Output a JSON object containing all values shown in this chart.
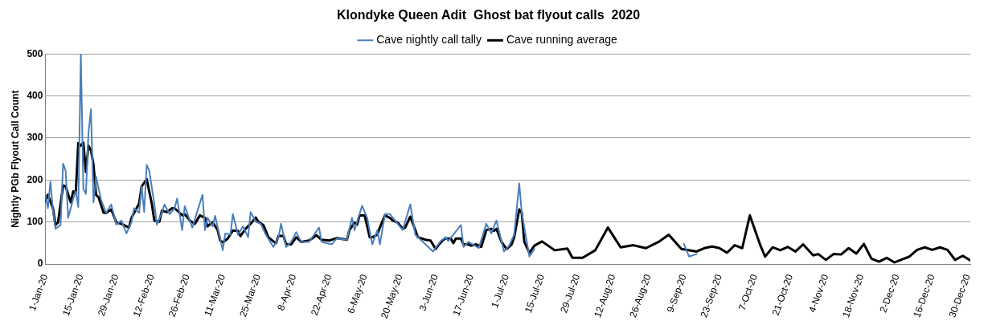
{
  "chart_data": {
    "type": "line",
    "title": "Klondyke Queen Adit  Ghost bat flyout calls  2020",
    "ylabel": "Nightly PGb Flyout Call Count",
    "xlim": [
      "2020-01-01",
      "2020-12-31"
    ],
    "xticks": [
      {
        "value": "2020-01-01",
        "label": "1-Jan-20"
      },
      {
        "value": "2020-01-15",
        "label": "15-Jan-20"
      },
      {
        "value": "2020-01-29",
        "label": "29-Jan-20"
      },
      {
        "value": "2020-02-12",
        "label": "12-Feb-20"
      },
      {
        "value": "2020-02-26",
        "label": "26-Feb-20"
      },
      {
        "value": "2020-03-11",
        "label": "11-Mar-20"
      },
      {
        "value": "2020-03-25",
        "label": "25-Mar-20"
      },
      {
        "value": "2020-04-08",
        "label": "8-Apr-20"
      },
      {
        "value": "2020-04-22",
        "label": "22-Apr-20"
      },
      {
        "value": "2020-05-06",
        "label": "6-May-20"
      },
      {
        "value": "2020-05-20",
        "label": "20-May-20"
      },
      {
        "value": "2020-06-03",
        "label": "3-Jun-20"
      },
      {
        "value": "2020-06-17",
        "label": "17-Jun-20"
      },
      {
        "value": "2020-07-01",
        "label": "1-Jul-20"
      },
      {
        "value": "2020-07-15",
        "label": "15-Jul-20"
      },
      {
        "value": "2020-07-29",
        "label": "29-Jul-20"
      },
      {
        "value": "2020-08-12",
        "label": "12-Aug-20"
      },
      {
        "value": "2020-08-26",
        "label": "26-Aug-20"
      },
      {
        "value": "2020-09-09",
        "label": "9-Sep-20"
      },
      {
        "value": "2020-09-23",
        "label": "23-Sep-20"
      },
      {
        "value": "2020-10-07",
        "label": "7-Oct-20"
      },
      {
        "value": "2020-10-21",
        "label": "21-Oct-20"
      },
      {
        "value": "2020-11-04",
        "label": "4-Nov-20"
      },
      {
        "value": "2020-11-18",
        "label": "18-Nov-20"
      },
      {
        "value": "2020-12-02",
        "label": "2-Dec-20"
      },
      {
        "value": "2020-12-16",
        "label": "16-Dec-20"
      },
      {
        "value": "2020-12-30",
        "label": "30-Dec-20"
      }
    ],
    "ylim": [
      0,
      500
    ],
    "yticks": [
      0,
      100,
      200,
      300,
      400,
      500
    ],
    "grid": "y",
    "legend": "top",
    "marker": "none",
    "line_style": "solid",
    "series": [
      {
        "name": "Cave nightly call tally",
        "color": "#4a7ebb",
        "x": [
          "2020-01-01",
          "2020-01-02",
          "2020-01-03",
          "2020-01-04",
          "2020-01-05",
          "2020-01-07",
          "2020-01-08",
          "2020-01-09",
          "2020-01-10",
          "2020-01-12",
          "2020-01-13",
          "2020-01-14",
          "2020-01-15",
          "2020-01-16",
          "2020-01-17",
          "2020-01-18",
          "2020-01-19",
          "2020-01-20",
          "2020-01-21",
          "2020-01-23",
          "2020-01-25",
          "2020-01-27",
          "2020-01-29",
          "2020-01-31",
          "2020-02-02",
          "2020-02-04",
          "2020-02-05",
          "2020-02-07",
          "2020-02-08",
          "2020-02-09",
          "2020-02-10",
          "2020-02-11",
          "2020-02-13",
          "2020-02-14",
          "2020-02-16",
          "2020-02-17",
          "2020-02-19",
          "2020-02-21",
          "2020-02-22",
          "2020-02-24",
          "2020-02-25",
          "2020-02-27",
          "2020-02-28",
          "2020-03-03",
          "2020-03-04",
          "2020-03-05",
          "2020-03-07",
          "2020-03-08",
          "2020-03-11",
          "2020-03-12",
          "2020-03-14",
          "2020-03-15",
          "2020-03-17",
          "2020-03-19",
          "2020-03-21",
          "2020-03-22",
          "2020-03-24",
          "2020-03-26",
          "2020-03-28",
          "2020-03-31",
          "2020-04-02",
          "2020-04-03",
          "2020-04-05",
          "2020-04-07",
          "2020-04-09",
          "2020-04-11",
          "2020-04-14",
          "2020-04-15",
          "2020-04-18",
          "2020-04-19",
          "2020-04-23",
          "2020-04-25",
          "2020-04-29",
          "2020-05-01",
          "2020-05-02",
          "2020-05-05",
          "2020-05-07",
          "2020-05-09",
          "2020-05-11",
          "2020-05-12",
          "2020-05-14",
          "2020-05-16",
          "2020-05-21",
          "2020-05-24",
          "2020-05-26",
          "2020-05-29",
          "2020-06-02",
          "2020-06-05",
          "2020-06-07",
          "2020-06-08",
          "2020-06-13",
          "2020-06-14",
          "2020-06-16",
          "2020-06-20",
          "2020-06-23",
          "2020-06-25",
          "2020-06-27",
          "2020-06-30",
          "2020-07-02",
          "2020-07-04",
          "2020-07-06",
          "2020-07-07",
          "2020-07-10",
          "2020-07-12",
          "2020-08-10",
          "2020-09-09",
          "2020-09-11",
          "2020-09-14"
        ],
        "values": [
          165,
          133,
          196,
          127,
          84,
          93,
          239,
          222,
          110,
          156,
          173,
          136,
          500,
          179,
          167,
          311,
          368,
          147,
          208,
          153,
          122,
          142,
          94,
          104,
          73,
          100,
          133,
          122,
          185,
          124,
          236,
          222,
          144,
          94,
          122,
          142,
          119,
          133,
          156,
          81,
          138,
          104,
          87,
          165,
          81,
          110,
          90,
          115,
          33,
          73,
          70,
          119,
          70,
          90,
          64,
          124,
          101,
          96,
          70,
          41,
          64,
          96,
          41,
          53,
          76,
          53,
          53,
          61,
          87,
          53,
          47,
          61,
          58,
          110,
          81,
          139,
          110,
          47,
          81,
          47,
          119,
          119,
          81,
          142,
          70,
          53,
          30,
          55,
          64,
          55,
          93,
          41,
          53,
          38,
          96,
          73,
          104,
          30,
          44,
          70,
          192,
          122,
          18,
          36,
          null,
          48,
          18,
          24
        ]
      },
      {
        "name": "Cave running average",
        "color": "#000000",
        "x": [
          "2020-01-01",
          "2020-01-02",
          "2020-01-04",
          "2020-01-05",
          "2020-01-06",
          "2020-01-08",
          "2020-01-09",
          "2020-01-11",
          "2020-01-12",
          "2020-01-13",
          "2020-01-14",
          "2020-01-15",
          "2020-01-16",
          "2020-01-17",
          "2020-01-18",
          "2020-01-19",
          "2020-01-20",
          "2020-01-21",
          "2020-01-22",
          "2020-01-24",
          "2020-01-25",
          "2020-01-27",
          "2020-01-29",
          "2020-01-31",
          "2020-02-03",
          "2020-02-04",
          "2020-02-06",
          "2020-02-07",
          "2020-02-08",
          "2020-02-10",
          "2020-02-12",
          "2020-02-13",
          "2020-02-15",
          "2020-02-16",
          "2020-02-18",
          "2020-02-20",
          "2020-02-21",
          "2020-02-23",
          "2020-02-24",
          "2020-02-25",
          "2020-02-27",
          "2020-02-29",
          "2020-03-02",
          "2020-03-04",
          "2020-03-05",
          "2020-03-07",
          "2020-03-09",
          "2020-03-10",
          "2020-03-11",
          "2020-03-13",
          "2020-03-15",
          "2020-03-17",
          "2020-03-18",
          "2020-03-20",
          "2020-03-22",
          "2020-03-24",
          "2020-03-25",
          "2020-03-27",
          "2020-03-29",
          "2020-03-31",
          "2020-04-01",
          "2020-04-02",
          "2020-04-04",
          "2020-04-05",
          "2020-04-07",
          "2020-04-09",
          "2020-04-11",
          "2020-04-14",
          "2020-04-15",
          "2020-04-17",
          "2020-04-19",
          "2020-04-22",
          "2020-04-25",
          "2020-04-29",
          "2020-04-30",
          "2020-05-02",
          "2020-05-03",
          "2020-05-04",
          "2020-05-06",
          "2020-05-08",
          "2020-05-09",
          "2020-05-11",
          "2020-05-12",
          "2020-05-14",
          "2020-05-16",
          "2020-05-17",
          "2020-05-19",
          "2020-05-21",
          "2020-05-22",
          "2020-05-24",
          "2020-05-26",
          "2020-05-27",
          "2020-05-30",
          "2020-06-01",
          "2020-06-03",
          "2020-06-04",
          "2020-06-06",
          "2020-06-07",
          "2020-06-09",
          "2020-06-10",
          "2020-06-11",
          "2020-06-13",
          "2020-06-14",
          "2020-06-16",
          "2020-06-17",
          "2020-06-19",
          "2020-06-21",
          "2020-06-23",
          "2020-06-25",
          "2020-06-26",
          "2020-06-27",
          "2020-06-29",
          "2020-07-01",
          "2020-07-03",
          "2020-07-04",
          "2020-07-06",
          "2020-07-07",
          "2020-07-08",
          "2020-07-10",
          "2020-07-12",
          "2020-07-15",
          "2020-07-20",
          "2020-07-25",
          "2020-07-27",
          "2020-07-31",
          "2020-08-05",
          "2020-08-10",
          "2020-08-15",
          "2020-08-20",
          "2020-08-25",
          "2020-08-30",
          "2020-09-03",
          "2020-09-08",
          "2020-09-14",
          "2020-09-17",
          "2020-09-20",
          "2020-09-21",
          "2020-09-23",
          "2020-09-26",
          "2020-09-29",
          "2020-10-02",
          "2020-10-05",
          "2020-10-09",
          "2020-10-11",
          "2020-10-14",
          "2020-10-17",
          "2020-10-20",
          "2020-10-23",
          "2020-10-26",
          "2020-10-30",
          "2020-11-01",
          "2020-11-04",
          "2020-11-07",
          "2020-11-10",
          "2020-11-13",
          "2020-11-16",
          "2020-11-19",
          "2020-11-22",
          "2020-11-25",
          "2020-11-28",
          "2020-12-01",
          "2020-12-04",
          "2020-12-07",
          "2020-12-10",
          "2020-12-13",
          "2020-12-16",
          "2020-12-19",
          "2020-12-22",
          "2020-12-25",
          "2020-12-28",
          "2020-12-31"
        ],
        "values": [
          150,
          165,
          133,
          93,
          99,
          187,
          185,
          147,
          173,
          170,
          288,
          282,
          289,
          219,
          282,
          271,
          236,
          165,
          159,
          122,
          122,
          130,
          99,
          96,
          87,
          110,
          133,
          144,
          185,
          202,
          144,
          104,
          101,
          127,
          124,
          133,
          133,
          122,
          116,
          119,
          104,
          96,
          116,
          110,
          90,
          100,
          81,
          56,
          52,
          61,
          80,
          79,
          67,
          84,
          96,
          111,
          101,
          93,
          64,
          54,
          50,
          67,
          67,
          47,
          47,
          64,
          53,
          56,
          60,
          69,
          58,
          56,
          62,
          58,
          81,
          99,
          94,
          116,
          116,
          64,
          64,
          70,
          87,
          116,
          110,
          104,
          99,
          84,
          87,
          113,
          81,
          64,
          58,
          56,
          36,
          44,
          58,
          61,
          61,
          50,
          61,
          61,
          47,
          47,
          44,
          47,
          41,
          81,
          84,
          79,
          84,
          53,
          36,
          47,
          64,
          130,
          122,
          53,
          27,
          44,
          54,
          33,
          37,
          15,
          15,
          33,
          87,
          40,
          45,
          38,
          53,
          70,
          36,
          30,
          38,
          42,
          41,
          38,
          27,
          45,
          38,
          116,
          47,
          18,
          40,
          33,
          41,
          30,
          47,
          21,
          24,
          10,
          24,
          23,
          38,
          25,
          48,
          13,
          6,
          15,
          4,
          11,
          18,
          34,
          40,
          34,
          40,
          34,
          10,
          20,
          9
        ]
      }
    ]
  }
}
